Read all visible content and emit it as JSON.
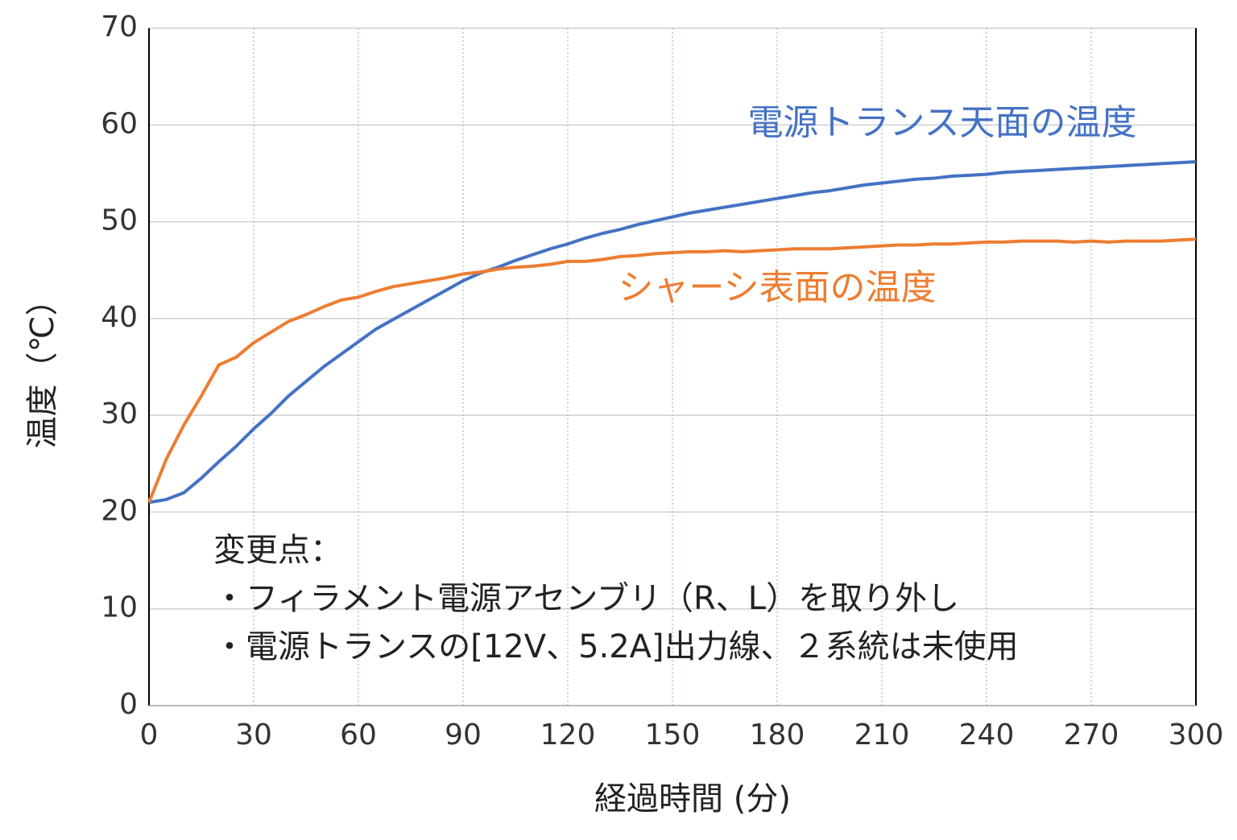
{
  "chart_data": {
    "type": "line",
    "xlabel": "経過時間 (分)",
    "ylabel": "温度（℃）",
    "x": [
      0,
      5,
      10,
      15,
      20,
      25,
      30,
      35,
      40,
      45,
      50,
      55,
      60,
      65,
      70,
      75,
      80,
      85,
      90,
      95,
      100,
      105,
      110,
      115,
      120,
      125,
      130,
      135,
      140,
      145,
      150,
      155,
      160,
      165,
      170,
      175,
      180,
      185,
      190,
      195,
      200,
      205,
      210,
      215,
      220,
      225,
      230,
      235,
      240,
      245,
      250,
      255,
      260,
      265,
      270,
      275,
      280,
      285,
      290,
      295,
      300
    ],
    "series": [
      {
        "name": "電源トランス天面の温度",
        "color": "#4472c4",
        "values": [
          21,
          21.3,
          22,
          23.5,
          25.2,
          26.8,
          28.6,
          30.2,
          32,
          33.5,
          35,
          36.3,
          37.6,
          38.9,
          39.9,
          40.9,
          41.9,
          42.9,
          43.9,
          44.7,
          45.3,
          46,
          46.6,
          47.2,
          47.7,
          48.3,
          48.8,
          49.2,
          49.7,
          50.1,
          50.5,
          50.9,
          51.2,
          51.5,
          51.8,
          52.1,
          52.4,
          52.7,
          53,
          53.2,
          53.5,
          53.8,
          54,
          54.2,
          54.4,
          54.5,
          54.7,
          54.8,
          54.9,
          55.1,
          55.2,
          55.3,
          55.4,
          55.5,
          55.6,
          55.7,
          55.8,
          55.9,
          56,
          56.1,
          56.2
        ]
      },
      {
        "name": "シャーシ表面の温度",
        "color": "#ed7d31",
        "values": [
          21,
          25.5,
          29,
          32,
          35.2,
          36,
          37.5,
          38.6,
          39.7,
          40.4,
          41.2,
          41.9,
          42.2,
          42.8,
          43.3,
          43.6,
          43.9,
          44.2,
          44.6,
          44.8,
          45.1,
          45.3,
          45.4,
          45.6,
          45.9,
          45.9,
          46.1,
          46.4,
          46.5,
          46.7,
          46.8,
          46.9,
          46.9,
          47,
          46.9,
          47,
          47.1,
          47.2,
          47.2,
          47.2,
          47.3,
          47.4,
          47.5,
          47.6,
          47.6,
          47.7,
          47.7,
          47.8,
          47.9,
          47.9,
          48,
          48,
          48,
          47.9,
          48,
          47.9,
          48,
          48,
          48,
          48.1,
          48.2
        ]
      }
    ],
    "annotations": [
      "変更点：",
      "・フィラメント電源アセンブリ（R、L）を取り外し",
      "・電源トランスの[12V、5.2A]出力線、２系統は未使用"
    ],
    "xlim": [
      0,
      300
    ],
    "xticks": [
      0,
      30,
      60,
      90,
      120,
      150,
      180,
      210,
      240,
      270,
      300
    ],
    "ylim": [
      0,
      70
    ],
    "yticks": [
      0,
      10,
      20,
      30,
      40,
      50,
      60,
      70
    ],
    "grid": true
  }
}
